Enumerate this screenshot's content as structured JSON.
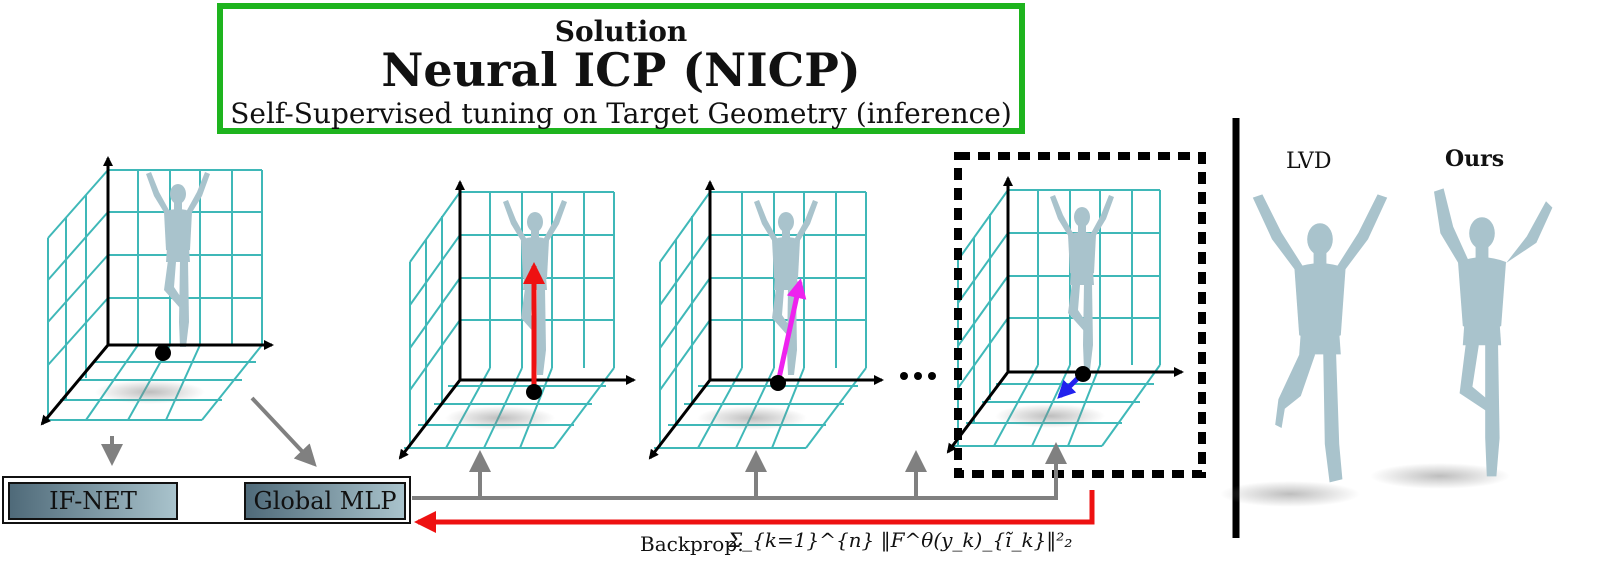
{
  "header": {
    "small_title": "Solution",
    "main_title": "Neural ICP (NICP)",
    "subtitle": "Self-Supervised tuning on Target Geometry (inference)"
  },
  "encoder": {
    "ifnet_label": "IF-NET",
    "mlp_label": "Global MLP"
  },
  "comparison": {
    "lvd_label": "LVD",
    "ours_label": "Ours"
  },
  "loss": {
    "prefix": "Backprop:",
    "formula": "Σ_{k=1}^{n} ‖F^θ(y_k)_{ĩ_k}‖²₂"
  },
  "colors": {
    "frame_green": "#1eb41e",
    "grid_teal": "#3fb8b8",
    "arrow_gray": "#808080",
    "arrow_red": "#ee1111",
    "arrow_magenta": "#ee22ee",
    "arrow_blue": "#2222ee",
    "figure": "#a9c3cc"
  }
}
